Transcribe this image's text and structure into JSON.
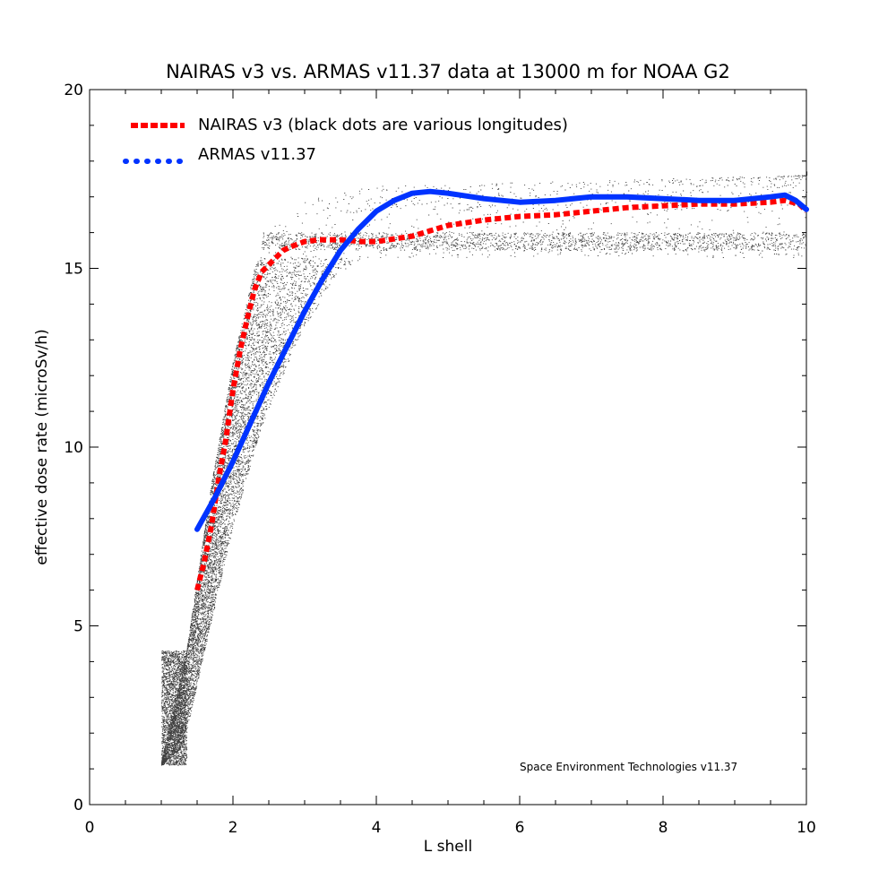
{
  "chart_data": {
    "type": "line",
    "title": "NAIRAS  v3 vs. ARMAS v11.37 data at 13000 m for NOAA G2",
    "xlabel": "L shell",
    "ylabel": "effective dose rate (microSv/h)",
    "xlim": [
      0,
      10
    ],
    "ylim": [
      0,
      20
    ],
    "xticks": [
      "0",
      "2",
      "4",
      "6",
      "8",
      "10"
    ],
    "yticks": [
      "0",
      "5",
      "10",
      "15",
      "20"
    ],
    "grid": false,
    "legend_position": "top-left",
    "annotation": "Space Environment Technologies v11.37",
    "series": [
      {
        "name": "NAIRAS v3 (black dots are various longitudes)",
        "style": "dashed",
        "color": "#ff0000",
        "x": [
          1.5,
          1.6,
          1.7,
          1.8,
          1.9,
          2.0,
          2.1,
          2.2,
          2.3,
          2.4,
          2.5,
          2.6,
          2.7,
          2.8,
          3.0,
          3.2,
          3.5,
          3.8,
          4.0,
          4.5,
          5.0,
          5.5,
          6.0,
          6.5,
          7.0,
          7.5,
          8.0,
          8.5,
          9.0,
          9.5,
          9.7,
          9.9,
          10.0
        ],
        "y": [
          6.0,
          6.8,
          7.8,
          9.1,
          10.2,
          11.6,
          12.7,
          13.6,
          14.4,
          14.9,
          15.1,
          15.3,
          15.5,
          15.6,
          15.75,
          15.8,
          15.8,
          15.75,
          15.75,
          15.9,
          16.2,
          16.35,
          16.45,
          16.5,
          16.6,
          16.7,
          16.75,
          16.8,
          16.8,
          16.85,
          16.9,
          16.8,
          16.6
        ]
      },
      {
        "name": "ARMAS v11.37",
        "style": "solid",
        "color": "#0033ff",
        "x": [
          1.5,
          1.75,
          2.0,
          2.25,
          2.5,
          2.75,
          3.0,
          3.25,
          3.5,
          3.75,
          4.0,
          4.25,
          4.5,
          4.75,
          5.0,
          5.5,
          6.0,
          6.5,
          7.0,
          7.5,
          8.0,
          8.5,
          9.0,
          9.5,
          9.7,
          9.85,
          10.0
        ],
        "y": [
          7.7,
          8.6,
          9.6,
          10.7,
          11.8,
          12.8,
          13.8,
          14.7,
          15.5,
          16.1,
          16.6,
          16.9,
          17.1,
          17.15,
          17.1,
          16.95,
          16.85,
          16.9,
          17.0,
          17.0,
          16.95,
          16.9,
          16.9,
          17.0,
          17.05,
          16.9,
          16.65
        ]
      }
    ]
  }
}
